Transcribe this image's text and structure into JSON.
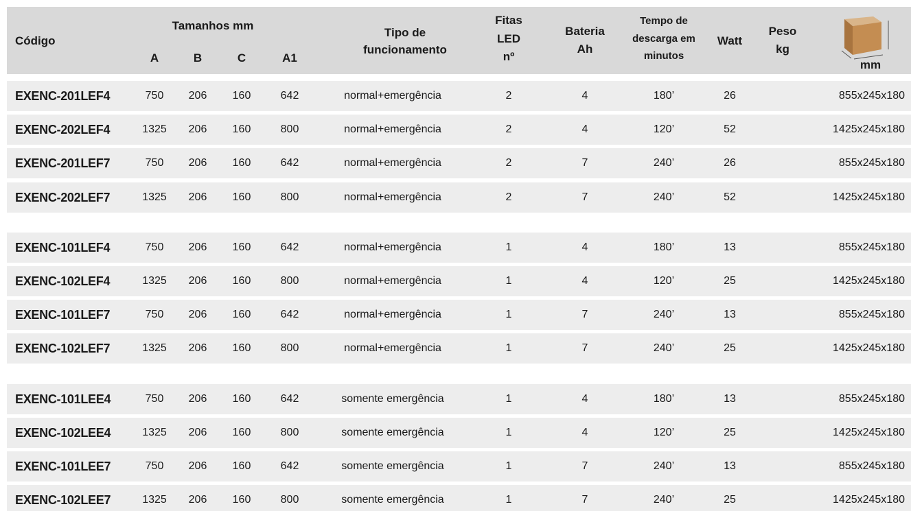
{
  "header": {
    "codigo": "Código",
    "tamanhos": "Tamanhos mm",
    "dims": [
      "A",
      "B",
      "C",
      "A1"
    ],
    "tipo": [
      "Tipo de",
      "funcionamento"
    ],
    "fitas": [
      "Fitas",
      "LED",
      "nº"
    ],
    "bateria": [
      "Bateria",
      "Ah"
    ],
    "tempo": [
      "Tempo de",
      "descarga em",
      "minutos"
    ],
    "watt": "Watt",
    "peso": [
      "Peso",
      "kg"
    ],
    "mm": "mm"
  },
  "groups": [
    [
      [
        "EXENC-201LEF4",
        750,
        206,
        160,
        642,
        "normal+emergência",
        2,
        4,
        "180’",
        26,
        "855x245x180"
      ],
      [
        "EXENC-202LEF4",
        1325,
        206,
        160,
        800,
        "normal+emergência",
        2,
        4,
        "120’",
        52,
        "1425x245x180"
      ],
      [
        "EXENC-201LEF7",
        750,
        206,
        160,
        642,
        "normal+emergência",
        2,
        7,
        "240’",
        26,
        "855x245x180"
      ],
      [
        "EXENC-202LEF7",
        1325,
        206,
        160,
        800,
        "normal+emergência",
        2,
        7,
        "240’",
        52,
        "1425x245x180"
      ]
    ],
    [
      [
        "EXENC-101LEF4",
        750,
        206,
        160,
        642,
        "normal+emergência",
        1,
        4,
        "180’",
        13,
        "855x245x180"
      ],
      [
        "EXENC-102LEF4",
        1325,
        206,
        160,
        800,
        "normal+emergência",
        1,
        4,
        "120’",
        25,
        "1425x245x180"
      ],
      [
        "EXENC-101LEF7",
        750,
        206,
        160,
        642,
        "normal+emergência",
        1,
        7,
        "240’",
        13,
        "855x245x180"
      ],
      [
        "EXENC-102LEF7",
        1325,
        206,
        160,
        800,
        "normal+emergência",
        1,
        7,
        "240’",
        25,
        "1425x245x180"
      ]
    ],
    [
      [
        "EXENC-101LEE4",
        750,
        206,
        160,
        642,
        "somente emergência",
        1,
        4,
        "180’",
        13,
        "855x245x180"
      ],
      [
        "EXENC-102LEE4",
        1325,
        206,
        160,
        800,
        "somente emergência",
        1,
        4,
        "120’",
        25,
        "1425x245x180"
      ],
      [
        "EXENC-101LEE7",
        750,
        206,
        160,
        642,
        "somente emergência",
        1,
        7,
        "240’",
        13,
        "855x245x180"
      ],
      [
        "EXENC-102LEE7",
        1325,
        206,
        160,
        800,
        "somente emergência",
        1,
        7,
        "240’",
        25,
        "1425x245x180"
      ]
    ]
  ]
}
